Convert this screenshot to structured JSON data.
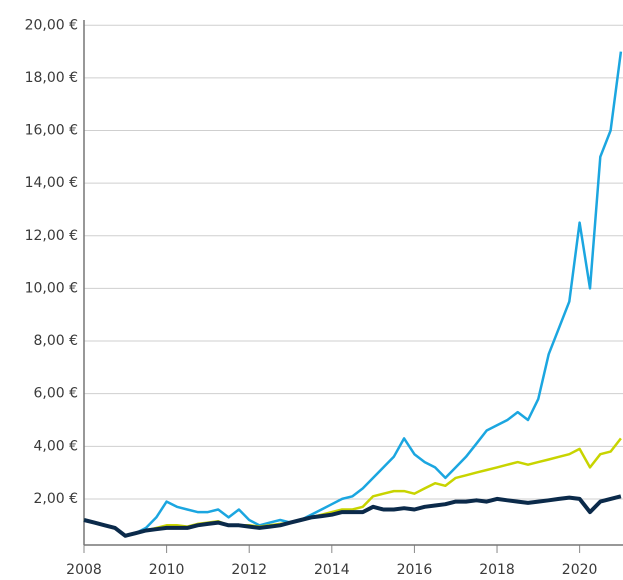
{
  "chart_data": {
    "type": "line",
    "x": [
      2008,
      2008.25,
      2008.5,
      2008.75,
      2009,
      2009.25,
      2009.5,
      2009.75,
      2010,
      2010.25,
      2010.5,
      2010.75,
      2011,
      2011.25,
      2011.5,
      2011.75,
      2012,
      2012.25,
      2012.5,
      2012.75,
      2013,
      2013.25,
      2013.5,
      2013.75,
      2014,
      2014.25,
      2014.5,
      2014.75,
      2015,
      2015.25,
      2015.5,
      2015.75,
      2016,
      2016.25,
      2016.5,
      2016.75,
      2017,
      2017.25,
      2017.5,
      2017.75,
      2018,
      2018.25,
      2018.5,
      2018.75,
      2019,
      2019.25,
      2019.5,
      2019.75,
      2020,
      2020.25,
      2020.5,
      2020.75,
      2021
    ],
    "series": [
      {
        "color": "#1ba6e0",
        "values": [
          1.2,
          1.1,
          1.0,
          0.9,
          0.6,
          0.7,
          0.9,
          1.3,
          1.9,
          1.7,
          1.6,
          1.5,
          1.5,
          1.6,
          1.3,
          1.6,
          1.2,
          1.0,
          1.1,
          1.2,
          1.1,
          1.2,
          1.4,
          1.6,
          1.8,
          2.0,
          2.1,
          2.4,
          2.8,
          3.2,
          3.6,
          4.3,
          3.7,
          3.4,
          3.2,
          2.8,
          3.2,
          3.6,
          4.1,
          4.6,
          4.8,
          5.0,
          5.3,
          5.0,
          5.8,
          7.5,
          8.5,
          9.5,
          12.5,
          10.0,
          15.0,
          16.0,
          19.0
        ]
      },
      {
        "color": "#c8d400",
        "values": [
          1.2,
          1.1,
          1.0,
          0.9,
          0.6,
          0.7,
          0.8,
          0.9,
          1.0,
          1.0,
          0.95,
          1.05,
          1.1,
          1.15,
          1.0,
          1.0,
          1.0,
          0.95,
          1.0,
          1.05,
          1.1,
          1.2,
          1.3,
          1.4,
          1.5,
          1.6,
          1.6,
          1.7,
          2.1,
          2.2,
          2.3,
          2.3,
          2.2,
          2.4,
          2.6,
          2.5,
          2.8,
          2.9,
          3.0,
          3.1,
          3.2,
          3.3,
          3.4,
          3.3,
          3.4,
          3.5,
          3.6,
          3.7,
          3.9,
          3.2,
          3.7,
          3.8,
          4.3
        ]
      },
      {
        "color": "#0b2a4a",
        "values": [
          1.2,
          1.1,
          1.0,
          0.9,
          0.6,
          0.7,
          0.8,
          0.85,
          0.9,
          0.9,
          0.9,
          1.0,
          1.05,
          1.1,
          1.0,
          1.0,
          0.95,
          0.9,
          0.95,
          1.0,
          1.1,
          1.2,
          1.3,
          1.35,
          1.4,
          1.5,
          1.5,
          1.5,
          1.7,
          1.6,
          1.6,
          1.65,
          1.6,
          1.7,
          1.75,
          1.8,
          1.9,
          1.9,
          1.95,
          1.9,
          2.0,
          1.95,
          1.9,
          1.85,
          1.9,
          1.95,
          2.0,
          2.05,
          2.0,
          1.5,
          1.9,
          2.0,
          2.1
        ]
      }
    ],
    "xlim": [
      2008,
      2021.05
    ],
    "xticks": [
      2008,
      2010,
      2012,
      2014,
      2016,
      2018,
      2020
    ],
    "ylim": [
      0.25,
      20.2
    ],
    "yticks": [
      {
        "value": 2,
        "label": "2,00 €"
      },
      {
        "value": 4,
        "label": "4,00 €"
      },
      {
        "value": 6,
        "label": "6,00 €"
      },
      {
        "value": 8,
        "label": "8,00 €"
      },
      {
        "value": 10,
        "label": "10,00 €"
      },
      {
        "value": 12,
        "label": "12,00 €"
      },
      {
        "value": 14,
        "label": "14,00 €"
      },
      {
        "value": 16,
        "label": "16,00 €"
      },
      {
        "value": 18,
        "label": "18,00 €"
      },
      {
        "value": 20,
        "label": "20,00 €"
      }
    ],
    "grid": true
  }
}
